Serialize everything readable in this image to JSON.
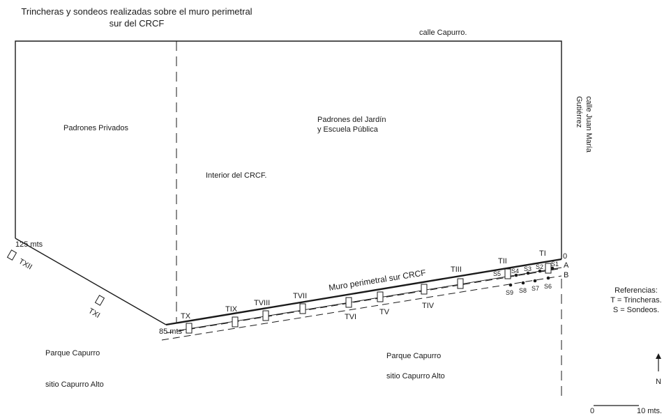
{
  "title": {
    "line1": "Trincheras y sondeos realizadas sobre el muro perimetral",
    "line2": "sur del CRCF"
  },
  "streets": {
    "north": "calle Capurro.",
    "east_line1": "calle Juan María",
    "east_line2": "Gutiérrez"
  },
  "areas": {
    "private": "Padrones Privados",
    "garden_line1": "Padrones del Jardín",
    "garden_line2": "y Escuela Pública",
    "interior": "Interior del CRCF.",
    "wall": "Muro perimetral sur CRCF",
    "park_left": "Parque Capurro",
    "site_left": "sitio Capurro Alto",
    "park_right": "Parque Capurro",
    "site_right": "sitio Capurro Alto"
  },
  "distances": {
    "d125": "125 mts",
    "d85": "85 mts",
    "d0": "0"
  },
  "lines": {
    "a": "A",
    "b": "B"
  },
  "trenches": {
    "TI": "TI",
    "TII": "TII",
    "TIII": "TIII",
    "TIV": "TIV",
    "TV": "TV",
    "TVI": "TVI",
    "TVII": "TVII",
    "TVIII": "TVIII",
    "TIX": "TIX",
    "TX": "TX",
    "TXI": "TXI",
    "TXII": "TXII"
  },
  "soundings": {
    "S1": "S1",
    "S2": "S2",
    "S3": "S3",
    "S4": "S4",
    "S5": "S5",
    "S6": "S6",
    "S7": "S7",
    "S8": "S8",
    "S9": "S9"
  },
  "legend": {
    "heading": "Referencias:",
    "trenches": "T = Trincheras.",
    "soundings": "S = Sondeos."
  },
  "north_label": "N",
  "scale": {
    "zero": "0",
    "label": "10 mts."
  }
}
